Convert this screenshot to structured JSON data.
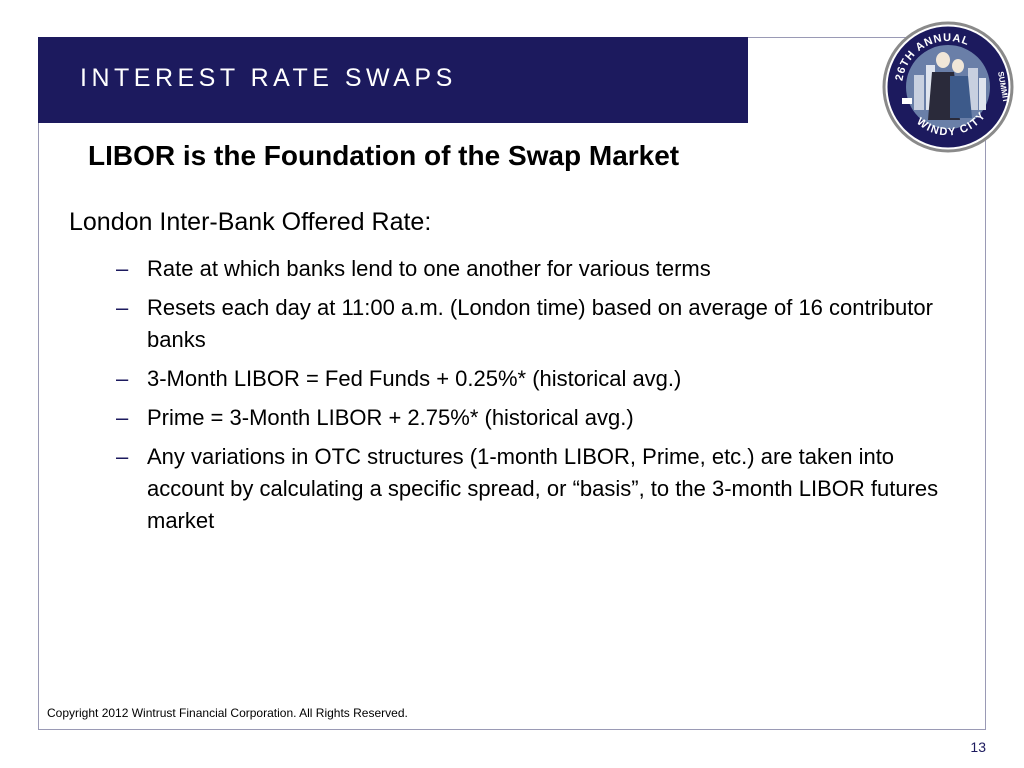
{
  "header": {
    "title": "INTEREST RATE SWAPS"
  },
  "logo": {
    "icon": "windy-city-summit-logo-icon",
    "text_top": "26TH ANNUAL",
    "text_right": "SUMMIT",
    "text_bottom": "WINDY CITY"
  },
  "subtitle": "LIBOR is the Foundation of the Swap Market",
  "lead": "London Inter-Bank Offered Rate:",
  "bullets": [
    "Rate at which banks lend to one another for various terms",
    "Resets each day at 11:00 a.m. (London time) based on average of 16 contributor banks",
    "3-Month LIBOR = Fed Funds + 0.25%* (historical avg.)",
    "Prime = 3-Month LIBOR + 2.75%* (historical avg.)",
    "Any variations in OTC structures (1-month LIBOR, Prime, etc.) are taken into account by calculating a specific spread, or “basis”, to the 3-month LIBOR futures market"
  ],
  "bullet_marker": "–",
  "footer": "Copyright 2012 Wintrust Financial Corporation. All Rights Reserved.",
  "page_number": "13",
  "colors": {
    "header_band": "#1c1a5e",
    "frame_border": "#9a9ab5"
  }
}
